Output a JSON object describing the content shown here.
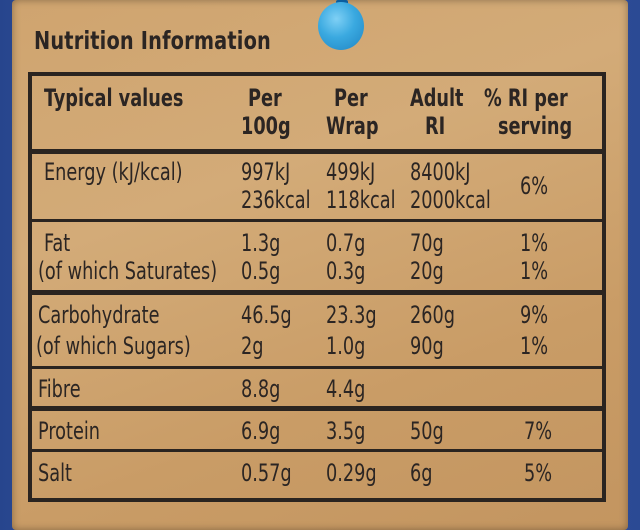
{
  "title": "Nutrition Information",
  "headers": {
    "typical": "Typical values",
    "per100_l1": "Per",
    "per100_l2": "100g",
    "wrap_l1": "Per",
    "wrap_l2": "Wrap",
    "adult_l1": "Adult",
    "adult_l2": "RI",
    "ri_l1": "% RI per",
    "ri_l2": "serving"
  },
  "rows": {
    "energy": {
      "label": "Energy (kJ/kcal)",
      "p100_kj": "997kJ",
      "p100_kcal": "236kcal",
      "wrap_kj": "499kJ",
      "wrap_kcal": "118kcal",
      "adult_kj": "8400kJ",
      "adult_kcal": "2000kcal",
      "ri": "6%"
    },
    "fat": {
      "label": "Fat",
      "p100": "1.3g",
      "wrap": "0.7g",
      "adult": "70g",
      "ri": "1%"
    },
    "saturates": {
      "label": "(of which Saturates)",
      "p100": "0.5g",
      "wrap": "0.3g",
      "adult": "20g",
      "ri": "1%"
    },
    "carbohydrate": {
      "label": "Carbohydrate",
      "p100": "46.5g",
      "wrap": "23.3g",
      "adult": "260g",
      "ri": "9%"
    },
    "sugars": {
      "label": "(of which Sugars)",
      "p100": "2g",
      "wrap": "1.0g",
      "adult": "90g",
      "ri": "1%"
    },
    "fibre": {
      "label": "Fibre",
      "p100": "8.8g",
      "wrap": "4.4g"
    },
    "protein": {
      "label": "Protein",
      "p100": "6.9g",
      "wrap": "3.5g",
      "adult": "50g",
      "ri": "7%"
    },
    "salt": {
      "label": "Salt",
      "p100": "0.57g",
      "wrap": "0.29g",
      "adult": "6g",
      "ri": "5%"
    }
  },
  "colors": {
    "label_paper": "#cfa46f",
    "ink": "#2b2523",
    "bag_blue": "#2d4f9a",
    "pin_blue": "#3aa9e0"
  }
}
